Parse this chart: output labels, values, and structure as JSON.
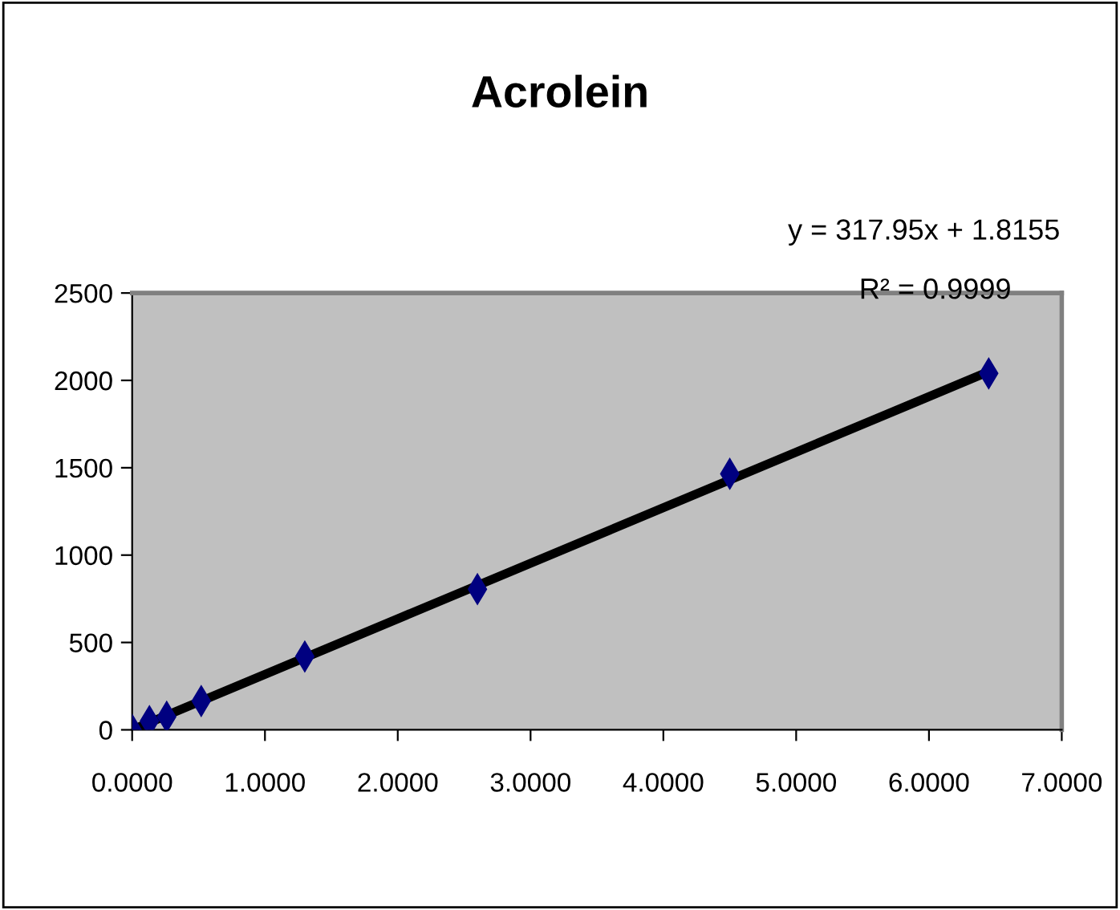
{
  "chart_data": {
    "type": "scatter",
    "title": "Acrolein",
    "grid": false,
    "legend": false,
    "xlim": [
      0,
      7
    ],
    "xticks": [
      {
        "value": 0,
        "label": "0.0000"
      },
      {
        "value": 1,
        "label": "1.0000"
      },
      {
        "value": 2,
        "label": "2.0000"
      },
      {
        "value": 3,
        "label": "3.0000"
      },
      {
        "value": 4,
        "label": "4.0000"
      },
      {
        "value": 5,
        "label": "5.0000"
      },
      {
        "value": 6,
        "label": "6.0000"
      },
      {
        "value": 7,
        "label": "7.0000"
      }
    ],
    "ylim": [
      0,
      2500
    ],
    "yticks": [
      0,
      500,
      1000,
      1500,
      2000,
      2500
    ],
    "series": [
      {
        "color": "#000080",
        "marker": "diamond",
        "x": [
          0,
          0.13,
          0.26,
          0.52,
          1.3,
          2.6,
          4.5,
          6.45
        ],
        "values": [
          0,
          50,
          75,
          165,
          420,
          805,
          1465,
          2040
        ]
      },
      {
        "type": "line",
        "color": "#000000",
        "x": [
          0,
          6.45
        ],
        "values": [
          0,
          2050
        ]
      }
    ],
    "annotations": [
      "y = 317.95x + 1.8155",
      "R² = 0.9999"
    ]
  }
}
